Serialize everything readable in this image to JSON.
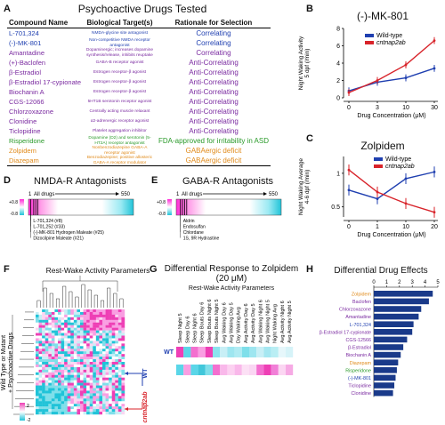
{
  "panels": {
    "A": {
      "letter": "A",
      "title": "Psychoactive Drugs Tested",
      "headers": [
        "Compound Name",
        "Biological Target(s)",
        "Rationale for Selection"
      ],
      "rows": [
        {
          "name": "L-701,324",
          "target": "NMDA-glycine site antagonist",
          "rationale": "Correlating",
          "color": "blue"
        },
        {
          "name": "(-)-MK-801",
          "target": "Non-competitive NMDA receptor antagonist",
          "rationale": "Correlating",
          "color": "blue"
        },
        {
          "name": "Amantadine",
          "target": "Dopaminergic; increases dopamine synthesis/release, inhibits reuptake",
          "rationale": "Correlating",
          "color": "purple"
        },
        {
          "name": "(+)-Baclofen",
          "target": "GABA-B receptor agonist",
          "rationale": "Anti-Correlating",
          "color": "purple"
        },
        {
          "name": "β-Estradiol",
          "target": "Estrogen receptor-β agonist",
          "rationale": "Anti-Correlating",
          "color": "purple"
        },
        {
          "name": "β-Estradiol 17-cypionate",
          "target": "Estrogen receptor-β agonist",
          "rationale": "Anti-Correlating",
          "color": "purple"
        },
        {
          "name": "Biochanin A",
          "target": "Estrogen receptor-β agonist",
          "rationale": "Anti-Correlating",
          "color": "purple"
        },
        {
          "name": "CGS-12066",
          "target": "5HT1B serotonin receptor agonist",
          "rationale": "Anti-Correlating",
          "color": "purple"
        },
        {
          "name": "Chlorzoxazone",
          "target": "Centrally acting muscle relaxant",
          "rationale": "Anti-Correlating",
          "color": "purple"
        },
        {
          "name": "Clonidine",
          "target": "α2-adrenergic receptor agonist",
          "rationale": "Anti-Correlating",
          "color": "purple"
        },
        {
          "name": "Ticlopidine",
          "target": "Platelet aggregation inhibitor",
          "rationale": "Anti-Correlating",
          "color": "purple"
        },
        {
          "name": "Risperidone",
          "target": "Dopamine (D2) and serotonin (5-HT2A) receptor antagonist",
          "rationale": "FDA-approved for irritability in ASD",
          "color": "green"
        },
        {
          "name": "Zolpidem",
          "target": "Nonbenzodiazepine GABA-A receptor agonist",
          "rationale": "GABAergic deficit",
          "color": "orange"
        },
        {
          "name": "Diazepam",
          "target": "Benzodiazepine; positive allosteric GABA-A receptor modulator",
          "rationale": "GABAergic deficit",
          "color": "orange"
        }
      ]
    },
    "B": {
      "letter": "B",
      "chart_data": {
        "type": "line",
        "title": "(-)-MK-801",
        "xlabel": "Drug Concentration (μM)",
        "ylabel": "Night Waking Activity 5 dpf (/min)",
        "categories": [
          "0",
          "3",
          "10",
          "30"
        ],
        "series": [
          {
            "name": "Wild-type",
            "color": "#1f3fb0",
            "values": [
              0.8,
              1.8,
              2.3,
              3.4
            ]
          },
          {
            "name": "cntnap2ab",
            "color": "#d8232a",
            "values": [
              0.6,
              2.0,
              3.8,
              6.6
            ]
          }
        ],
        "yticks": [
          0,
          2,
          4,
          6,
          8
        ],
        "ylim": [
          0,
          8
        ]
      }
    },
    "C": {
      "letter": "C",
      "chart_data": {
        "type": "line",
        "title": "Zolpidem",
        "xlabel": "Drug Concentration (μM)",
        "ylabel": "Night Waking Average 4-6 dpf (/min)",
        "categories": [
          "0",
          "1",
          "10",
          "20"
        ],
        "series": [
          {
            "name": "Wild-type",
            "color": "#1f3fb0",
            "values": [
              0.75,
              0.62,
              0.92,
              1.02
            ]
          },
          {
            "name": "cntnap2ab",
            "color": "#d8232a",
            "values": [
              1.05,
              0.72,
              0.55,
              0.42
            ]
          }
        ],
        "yticks": [
          0.5,
          1
        ],
        "ylim": [
          0.35,
          1.25
        ]
      }
    },
    "D": {
      "letter": "D",
      "title": "NMDA-R Antagonists",
      "scale_max": "+0.8",
      "scale_min": "-0.8",
      "start": "1",
      "start_label": "All drugs",
      "end": "550",
      "annotations": [
        "L-701,324 (#8)",
        "L-701,252 (#33)",
        "(-)-MK-801 Hydrogen Maleate (#25)",
        "Dizocilpine Maleate (#21)"
      ]
    },
    "E": {
      "letter": "E",
      "title": "GABA-R Antagonists",
      "scale_max": "+0.8",
      "scale_min": "-0.8",
      "start": "1",
      "start_label": "All drugs",
      "end": "550",
      "annotations": [
        "Aldrin",
        "Endosulfan",
        "Chlordane",
        "1S, 9R Hydrastine"
      ]
    },
    "F": {
      "letter": "F",
      "title": "Rest-Wake Activity Parameters",
      "ylabel": "Wild Type or Mutant + Psychoactive Drugs",
      "scale_max": "2",
      "scale_min": "-2",
      "wt_label": "WT",
      "mut_label": "cntnap2ab"
    },
    "G": {
      "letter": "G",
      "title": "Differential Response to Zolpidem (20 μM)",
      "subtitle": "Rest-Wake Activity Parameters",
      "columns": [
        "Sleep Night 5",
        "Sleep Day 6",
        "Sleep Night 6",
        "Sleep Bouts Day 6",
        "Sleep Bouts Night 6",
        "Sleep Bouts Night 5",
        "Avg Waking Day 6",
        "Avg Waking Day 5",
        "Day Waking Avg",
        "Avg Activity Day 6",
        "Avg Activity Day 5",
        "Avg Waking Night 6",
        "Avg Waking Night 5",
        "Night Waking Avg",
        "Avg Activity Night 6",
        "Avg Activity Night 5"
      ],
      "wt_label": "WT",
      "mut_label": "cntnap2ab",
      "wt_colors": [
        "#ee3fb5",
        "#5ad6e8",
        "#f36fcf",
        "#f99ee2",
        "#ee3fb5",
        "#8be3ee",
        "#c8eff6",
        "#9ee6f0",
        "#b0ebf3",
        "#7fdfea",
        "#9ee6f0",
        "#c8eff6",
        "#a5e7f1",
        "#b9eef4",
        "#e6f7fb",
        "#d6f3f8"
      ],
      "mut_colors": [
        "#5ad6e8",
        "#f99ee2",
        "#5ad6e8",
        "#41c7da",
        "#7fdfea",
        "#f36fcf",
        "#f9b8ea",
        "#fcd1f1",
        "#f9b8ea",
        "#fce0f5",
        "#fad6f3",
        "#f36fcf",
        "#ee3fb5",
        "#f17fd7",
        "#fbd6f2",
        "#f6aae4"
      ]
    },
    "H": {
      "letter": "H",
      "chart_data": {
        "type": "bar",
        "title": "Differential Drug Effects",
        "categories": [
          "Zolpidem",
          "Baclofen",
          "Chlorzoxazone",
          "Amantadine",
          "L-701,324",
          "β-Estradiol 17-cypionate",
          "CGS-12566",
          "β-Estradiol",
          "Biochanin A",
          "Diazepam",
          "Risperidone",
          "(-)-MK-801",
          "Ticlopidine",
          "Clonidine"
        ],
        "label_colors": [
          "orange",
          "purple",
          "purple",
          "purple",
          "blue",
          "purple",
          "purple",
          "purple",
          "purple",
          "orange",
          "green",
          "blue",
          "purple",
          "purple"
        ],
        "values": [
          4.6,
          4.3,
          3.7,
          3.5,
          3.1,
          3.0,
          2.6,
          2.3,
          2.1,
          1.9,
          1.8,
          1.7,
          1.6,
          1.5
        ],
        "xticks": [
          0,
          1,
          2,
          3,
          4,
          5
        ],
        "xlim": [
          0,
          5
        ],
        "bar_color": "#1a3a8a"
      }
    }
  },
  "colors": {
    "blue": "#1f3fb0",
    "purple": "#7a2aa0",
    "green": "#2a9a2a",
    "orange": "#e08a1a",
    "red": "#d8232a"
  }
}
